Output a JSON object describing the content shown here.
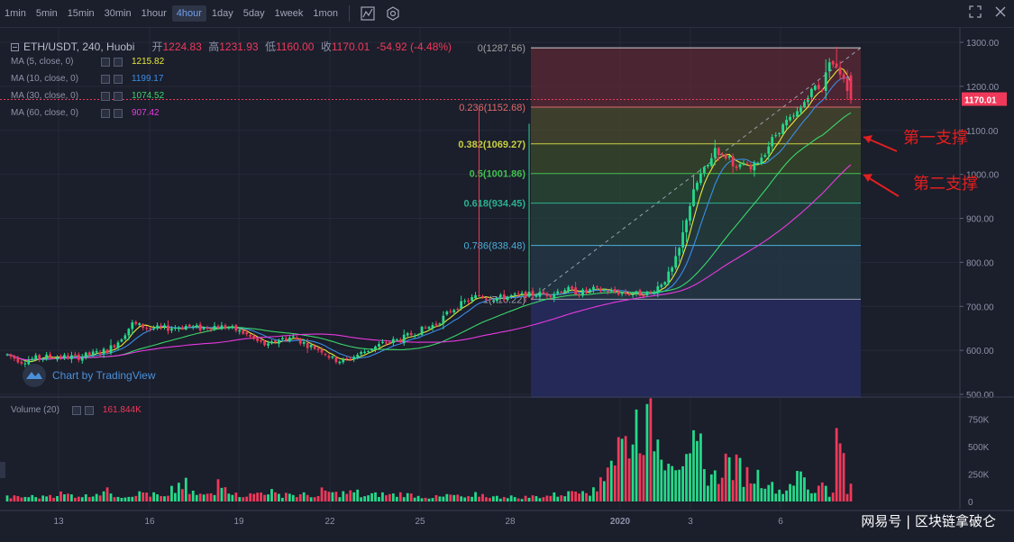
{
  "toolbar": {
    "timeframes": [
      "1min",
      "5min",
      "15min",
      "30min",
      "1hour",
      "4hour",
      "1day",
      "5day",
      "1week",
      "1mon"
    ],
    "active": "4hour"
  },
  "legend": {
    "symbol": "ETH/USDT, 240, Huobi",
    "o_label": "开",
    "o": "1224.83",
    "h_label": "高",
    "h": "1231.93",
    "l_label": "低",
    "l": "1160.00",
    "c_label": "收",
    "c": "1170.01",
    "change": "-54.92 (-4.48%)",
    "ma": [
      {
        "label": "MA (5, close, 0)",
        "value": "1215.82",
        "color": "#e8e83a"
      },
      {
        "label": "MA (10, close, 0)",
        "value": "1199.17",
        "color": "#3a8ee8"
      },
      {
        "label": "MA (30, close, 0)",
        "value": "1074.52",
        "color": "#3ad86a"
      },
      {
        "label": "MA (60, close, 0)",
        "value": "907.42",
        "color": "#e83ae0"
      }
    ]
  },
  "volume_legend": {
    "label": "Volume (20)",
    "value": "161.844K"
  },
  "tv_logo": "Chart by TradingView",
  "watermark": "网易号 | 区块链拿破仑",
  "colors": {
    "up": "#26d98a",
    "down": "#f0395a",
    "bg": "#1b1e2b",
    "grid": "#252a3a"
  },
  "annotations": [
    {
      "text": "第一支撑"
    },
    {
      "text": "第二支撑"
    }
  ],
  "chart_data": {
    "type": "candlestick",
    "title": "ETH/USDT, 240, Huobi",
    "ylim": [
      500,
      1300
    ],
    "y_ticks": [
      1300,
      1200,
      1100,
      1000,
      900,
      800,
      700,
      600,
      500
    ],
    "y_tick_labels": [
      "1300.00",
      "1200.00",
      "1100.00",
      "1000.00",
      "900.00",
      "800.00",
      "700.00",
      "600.00",
      "500.00"
    ],
    "x_tick_labels": [
      "13",
      "16",
      "19",
      "22",
      "25",
      "28",
      "2020",
      "3",
      "6"
    ],
    "last_price": "1170.01",
    "fib_levels": [
      {
        "ratio": "0",
        "price": "1287.56",
        "label": "0(1287.56)"
      },
      {
        "ratio": "0.236",
        "price": "1152.68",
        "label": "0.236(1152.68)"
      },
      {
        "ratio": "0.382",
        "price": "1069.27",
        "label": "0.382(1069.27)"
      },
      {
        "ratio": "0.5",
        "price": "1001.86",
        "label": "0.5(1001.86)"
      },
      {
        "ratio": "0.618",
        "price": "934.45",
        "label": "0.618(934.45)"
      },
      {
        "ratio": "0.786",
        "price": "838.48",
        "label": "0.786(838.48)"
      },
      {
        "ratio": "1",
        "price": "716.22",
        "label": "1(716.22)"
      }
    ],
    "price_path": [
      [
        0,
        590
      ],
      [
        4,
        575
      ],
      [
        8,
        582
      ],
      [
        12,
        586
      ],
      [
        16,
        585
      ],
      [
        20,
        585
      ],
      [
        24,
        592
      ],
      [
        28,
        600
      ],
      [
        31,
        620
      ],
      [
        35,
        660
      ],
      [
        40,
        650
      ],
      [
        45,
        650
      ],
      [
        50,
        655
      ],
      [
        54,
        650
      ],
      [
        58,
        655
      ],
      [
        62,
        652
      ],
      [
        66,
        640
      ],
      [
        70,
        620
      ],
      [
        73,
        610
      ],
      [
        76,
        625
      ],
      [
        80,
        630
      ],
      [
        84,
        612
      ],
      [
        88,
        600
      ],
      [
        91,
        580
      ],
      [
        94,
        575
      ],
      [
        98,
        590
      ],
      [
        102,
        605
      ],
      [
        106,
        618
      ],
      [
        110,
        625
      ],
      [
        114,
        640
      ],
      [
        117,
        650
      ],
      [
        120,
        660
      ],
      [
        124,
        690
      ],
      [
        128,
        710
      ],
      [
        132,
        725
      ],
      [
        136,
        718
      ],
      [
        140,
        722
      ],
      [
        144,
        725
      ],
      [
        148,
        728
      ],
      [
        152,
        728
      ],
      [
        156,
        740
      ],
      [
        160,
        730
      ],
      [
        164,
        738
      ],
      [
        168,
        735
      ],
      [
        172,
        730
      ],
      [
        176,
        728
      ],
      [
        180,
        730
      ],
      [
        184,
        760
      ],
      [
        186,
        785
      ],
      [
        188,
        830
      ],
      [
        190,
        900
      ],
      [
        192,
        960
      ],
      [
        194,
        1000
      ],
      [
        196,
        1020
      ],
      [
        198,
        1060
      ],
      [
        200,
        1040
      ],
      [
        202,
        1040
      ],
      [
        204,
        1010
      ],
      [
        206,
        1025
      ],
      [
        208,
        1010
      ],
      [
        210,
        1030
      ],
      [
        212,
        1050
      ],
      [
        214,
        1080
      ],
      [
        216,
        1100
      ],
      [
        218,
        1120
      ],
      [
        220,
        1130
      ],
      [
        222,
        1150
      ],
      [
        224,
        1180
      ],
      [
        226,
        1200
      ],
      [
        228,
        1195
      ],
      [
        230,
        1260
      ],
      [
        232,
        1240
      ],
      [
        234,
        1220
      ],
      [
        236,
        1170
      ]
    ],
    "volume_levels_k": [
      40,
      40,
      45,
      40,
      60,
      70,
      60,
      55,
      50,
      80,
      90,
      60,
      50,
      70,
      80,
      60,
      40,
      100,
      150,
      70,
      60,
      60,
      200,
      100,
      60,
      60,
      80,
      90,
      60,
      80,
      55,
      60,
      40,
      90,
      70,
      75,
      80,
      50,
      60,
      65,
      60,
      70,
      60,
      45,
      40,
      40,
      55,
      45,
      35,
      60,
      50,
      40,
      50,
      30,
      40,
      45,
      50,
      60,
      70,
      100,
      130,
      90,
      250,
      400,
      520,
      600,
      700,
      660,
      530,
      470,
      400,
      310,
      450,
      250,
      220,
      350,
      300,
      240,
      230,
      200,
      130,
      100,
      200,
      230,
      90,
      175,
      70,
      560,
      120
    ],
    "volume_max_k": 900,
    "volume_ticks": [
      "750K",
      "500K",
      "250K",
      "0"
    ]
  }
}
